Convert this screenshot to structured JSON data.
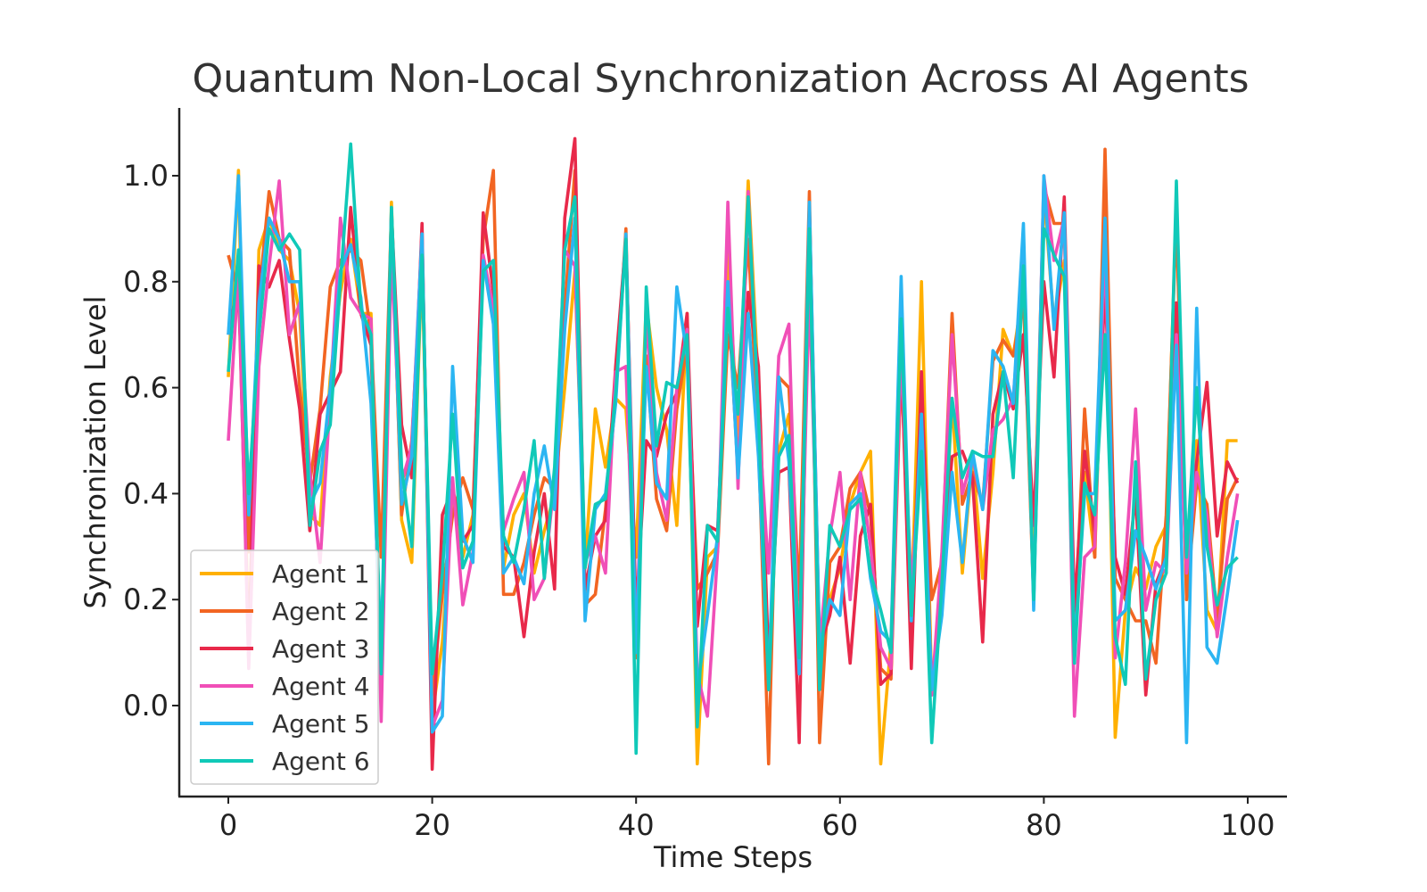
{
  "chart_data": {
    "type": "line",
    "title": "Quantum Non-Local Synchronization Across AI Agents",
    "xlabel": "Time Steps",
    "ylabel": "Synchronization Level",
    "xlim": [
      -5,
      104
    ],
    "ylim": [
      -0.17,
      1.13
    ],
    "xticks": [
      0,
      20,
      40,
      60,
      80,
      100
    ],
    "yticks": [
      0.0,
      0.2,
      0.4,
      0.6,
      0.8,
      1.0
    ],
    "xtick_labels": [
      "0",
      "20",
      "40",
      "60",
      "80",
      "100"
    ],
    "ytick_labels": [
      "0.0",
      "0.2",
      "0.4",
      "0.6",
      "0.8",
      "1.0"
    ],
    "grid": false,
    "legend": "lower-left",
    "x": [
      0,
      1,
      2,
      3,
      4,
      5,
      6,
      7,
      8,
      9,
      10,
      11,
      12,
      13,
      14,
      15,
      16,
      17,
      18,
      19,
      20,
      21,
      22,
      23,
      24,
      25,
      26,
      27,
      28,
      29,
      30,
      31,
      32,
      33,
      34,
      35,
      36,
      37,
      38,
      39,
      40,
      41,
      42,
      43,
      44,
      45,
      46,
      47,
      48,
      49,
      50,
      51,
      52,
      53,
      54,
      55,
      56,
      57,
      58,
      59,
      60,
      61,
      62,
      63,
      64,
      65,
      66,
      67,
      68,
      69,
      70,
      71,
      72,
      73,
      74,
      75,
      76,
      77,
      78,
      79,
      80,
      81,
      82,
      83,
      84,
      85,
      86,
      87,
      88,
      89,
      90,
      91,
      92,
      93,
      94,
      95,
      96,
      97,
      98,
      99
    ],
    "series": [
      {
        "name": "Agent 1",
        "color": "#FFB000",
        "values": [
          0.62,
          1.01,
          0.08,
          0.86,
          0.92,
          0.86,
          0.84,
          0.74,
          0.36,
          0.34,
          0.62,
          0.78,
          0.88,
          0.74,
          0.74,
          0.03,
          0.95,
          0.35,
          0.27,
          0.84,
          -0.02,
          0.12,
          0.4,
          0.28,
          0.36,
          0.84,
          0.74,
          0.26,
          0.36,
          0.4,
          0.25,
          0.33,
          0.4,
          0.6,
          0.82,
          0.26,
          0.56,
          0.45,
          0.58,
          0.56,
          0.28,
          0.76,
          0.6,
          0.52,
          0.34,
          0.74,
          -0.11,
          0.28,
          0.3,
          0.86,
          0.5,
          0.99,
          0.6,
          0.03,
          0.48,
          0.55,
          0.1,
          0.93,
          0.1,
          0.2,
          0.26,
          0.38,
          0.44,
          0.48,
          -0.11,
          0.12,
          0.76,
          0.17,
          0.8,
          0.03,
          0.2,
          0.58,
          0.25,
          0.47,
          0.24,
          0.44,
          0.71,
          0.66,
          0.79,
          0.27,
          0.97,
          0.72,
          0.84,
          0.12,
          0.44,
          0.28,
          0.9,
          -0.06,
          0.18,
          0.26,
          0.22,
          0.3,
          0.34,
          0.95,
          0.2,
          0.5,
          0.18,
          0.14,
          0.5,
          0.5
        ]
      },
      {
        "name": "Agent 2",
        "color": "#F26522",
        "values": [
          0.85,
          0.78,
          0.29,
          0.77,
          0.97,
          0.88,
          0.86,
          0.6,
          0.42,
          0.56,
          0.79,
          0.84,
          0.86,
          0.84,
          0.7,
          0.28,
          0.93,
          0.36,
          0.5,
          0.86,
          0.02,
          0.21,
          0.36,
          0.43,
          0.37,
          0.88,
          1.01,
          0.21,
          0.21,
          0.27,
          0.36,
          0.43,
          0.41,
          0.75,
          1.01,
          0.19,
          0.21,
          0.37,
          0.58,
          0.9,
          0.09,
          0.66,
          0.39,
          0.33,
          0.56,
          0.68,
          0.22,
          0.25,
          0.29,
          0.7,
          0.6,
          0.88,
          0.5,
          -0.11,
          0.62,
          0.6,
          0.2,
          0.97,
          -0.07,
          0.27,
          0.3,
          0.41,
          0.44,
          0.36,
          0.07,
          0.05,
          0.64,
          0.18,
          0.6,
          0.2,
          0.27,
          0.74,
          0.38,
          0.44,
          0.38,
          0.65,
          0.69,
          0.66,
          0.77,
          0.2,
          0.98,
          0.91,
          0.91,
          0.13,
          0.56,
          0.28,
          1.05,
          0.24,
          0.2,
          0.16,
          0.16,
          0.08,
          0.36,
          0.93,
          0.2,
          0.42,
          0.38,
          0.16,
          0.39,
          0.43
        ]
      },
      {
        "name": "Agent 3",
        "color": "#E8294A",
        "values": [
          0.7,
          0.8,
          0.1,
          0.83,
          0.79,
          0.84,
          0.69,
          0.56,
          0.33,
          0.55,
          0.59,
          0.63,
          0.94,
          0.74,
          0.68,
          0.01,
          0.93,
          0.53,
          0.43,
          0.91,
          -0.12,
          0.36,
          0.41,
          0.31,
          0.34,
          0.93,
          0.78,
          0.3,
          0.28,
          0.13,
          0.29,
          0.4,
          0.22,
          0.92,
          1.07,
          0.22,
          0.32,
          0.35,
          0.64,
          0.88,
          0.17,
          0.5,
          0.47,
          0.55,
          0.59,
          0.74,
          0.15,
          0.34,
          0.33,
          0.78,
          0.44,
          0.78,
          0.64,
          0.08,
          0.44,
          0.45,
          -0.07,
          0.94,
          0.11,
          0.17,
          0.28,
          0.08,
          0.32,
          0.38,
          0.04,
          0.06,
          0.67,
          0.07,
          0.63,
          0.02,
          0.26,
          0.47,
          0.48,
          0.43,
          0.12,
          0.55,
          0.63,
          0.56,
          0.7,
          0.34,
          0.8,
          0.62,
          0.96,
          0.18,
          0.48,
          0.33,
          0.8,
          0.28,
          0.21,
          0.4,
          0.02,
          0.23,
          0.28,
          0.76,
          0.3,
          0.46,
          0.61,
          0.32,
          0.46,
          0.42
        ]
      },
      {
        "name": "Agent 4",
        "color": "#F04FB7",
        "values": [
          0.5,
          0.82,
          0.07,
          0.64,
          0.83,
          0.99,
          0.7,
          0.76,
          0.44,
          0.27,
          0.58,
          0.92,
          0.77,
          0.74,
          0.73,
          -0.03,
          0.86,
          0.42,
          0.49,
          0.89,
          -0.04,
          0.01,
          0.43,
          0.19,
          0.29,
          0.85,
          0.75,
          0.33,
          0.39,
          0.44,
          0.2,
          0.24,
          0.43,
          0.86,
          0.83,
          0.27,
          0.32,
          0.25,
          0.63,
          0.64,
          0.1,
          0.74,
          0.44,
          0.35,
          0.6,
          0.71,
          0.06,
          -0.02,
          0.29,
          0.95,
          0.41,
          0.97,
          0.55,
          0.25,
          0.66,
          0.72,
          0.06,
          0.79,
          0.11,
          0.32,
          0.44,
          0.2,
          0.44,
          0.3,
          0.11,
          0.07,
          0.67,
          0.22,
          0.49,
          0.02,
          0.29,
          0.7,
          0.4,
          0.47,
          0.37,
          0.52,
          0.54,
          0.58,
          0.84,
          0.2,
          1.0,
          0.84,
          0.92,
          -0.02,
          0.28,
          0.3,
          0.88,
          0.09,
          0.27,
          0.56,
          0.18,
          0.27,
          0.25,
          0.7,
          0.25,
          0.44,
          0.36,
          0.13,
          0.28,
          0.4
        ]
      },
      {
        "name": "Agent 5",
        "color": "#2BB5F2",
        "values": [
          0.7,
          1.0,
          0.36,
          0.76,
          0.92,
          0.88,
          0.8,
          0.8,
          0.38,
          0.42,
          0.6,
          0.82,
          0.87,
          0.77,
          0.57,
          0.1,
          0.94,
          0.38,
          0.47,
          0.89,
          -0.05,
          -0.02,
          0.64,
          0.32,
          0.27,
          0.84,
          0.72,
          0.25,
          0.28,
          0.23,
          0.4,
          0.49,
          0.37,
          0.71,
          0.92,
          0.16,
          0.37,
          0.4,
          0.57,
          0.89,
          0.1,
          0.64,
          0.42,
          0.39,
          0.79,
          0.66,
          0.03,
          0.17,
          0.32,
          0.8,
          0.43,
          0.74,
          0.47,
          0.04,
          0.62,
          0.46,
          0.06,
          0.95,
          0.11,
          0.2,
          0.17,
          0.38,
          0.4,
          0.24,
          0.14,
          0.12,
          0.81,
          0.16,
          0.55,
          0.03,
          0.17,
          0.44,
          0.27,
          0.48,
          0.37,
          0.67,
          0.64,
          0.57,
          0.91,
          0.18,
          1.0,
          0.71,
          0.93,
          0.1,
          0.4,
          0.4,
          0.92,
          0.16,
          0.18,
          0.33,
          0.28,
          0.22,
          0.28,
          0.68,
          -0.07,
          0.75,
          0.11,
          0.08,
          0.21,
          0.35
        ]
      },
      {
        "name": "Agent 6",
        "color": "#10C9B8",
        "values": [
          0.63,
          0.86,
          0.4,
          0.7,
          0.9,
          0.86,
          0.89,
          0.86,
          0.34,
          0.48,
          0.53,
          0.8,
          1.06,
          0.75,
          0.7,
          0.06,
          0.94,
          0.45,
          0.3,
          0.85,
          0.06,
          0.25,
          0.55,
          0.26,
          0.31,
          0.82,
          0.84,
          0.32,
          0.27,
          0.37,
          0.5,
          0.24,
          0.45,
          0.86,
          0.96,
          0.26,
          0.38,
          0.39,
          0.59,
          0.88,
          -0.09,
          0.79,
          0.49,
          0.61,
          0.6,
          0.7,
          -0.04,
          0.34,
          0.31,
          0.75,
          0.55,
          0.96,
          0.55,
          0.03,
          0.47,
          0.51,
          0.09,
          0.9,
          0.03,
          0.34,
          0.3,
          0.37,
          0.39,
          0.25,
          0.18,
          0.1,
          0.73,
          0.17,
          0.48,
          -0.07,
          0.23,
          0.58,
          0.43,
          0.48,
          0.47,
          0.47,
          0.63,
          0.43,
          0.83,
          0.2,
          0.9,
          0.85,
          0.81,
          0.08,
          0.42,
          0.36,
          0.7,
          0.13,
          0.04,
          0.46,
          0.05,
          0.2,
          0.25,
          0.99,
          0.28,
          0.6,
          0.3,
          0.19,
          0.26,
          0.28
        ]
      }
    ]
  }
}
